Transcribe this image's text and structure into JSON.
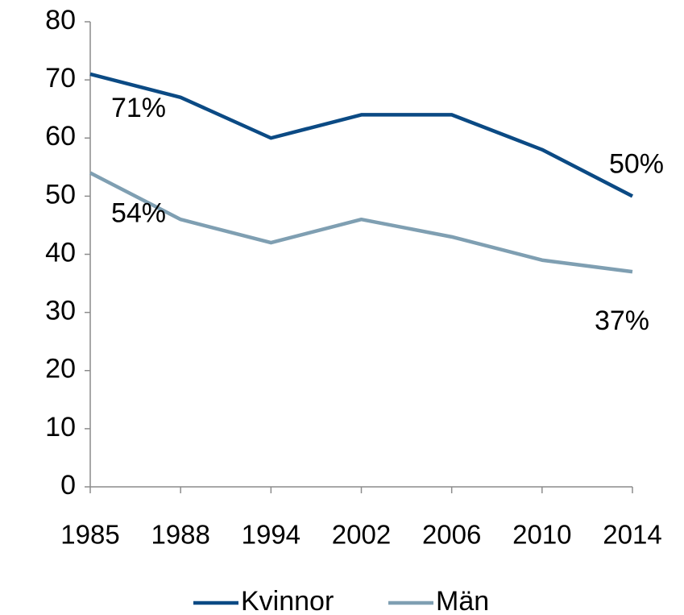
{
  "chart_data": {
    "type": "line",
    "categories": [
      "1985",
      "1988",
      "1994",
      "2002",
      "2006",
      "2010",
      "2014"
    ],
    "series": [
      {
        "name": "Kvinnor",
        "color": "#0b4a84",
        "values": [
          71,
          67,
          60,
          64,
          64,
          58,
          50
        ],
        "value_labels": [
          "71%",
          null,
          null,
          null,
          null,
          null,
          "50%"
        ]
      },
      {
        "name": "Män",
        "color": "#7f9fb2",
        "values": [
          54,
          46,
          42,
          46,
          43,
          39,
          37
        ],
        "value_labels": [
          "54%",
          null,
          null,
          null,
          null,
          null,
          "37%"
        ]
      }
    ],
    "ylim": [
      0,
      80
    ],
    "yticks": [
      0,
      10,
      20,
      30,
      40,
      50,
      60,
      70,
      80
    ],
    "grid": false,
    "legend": "bottom"
  }
}
